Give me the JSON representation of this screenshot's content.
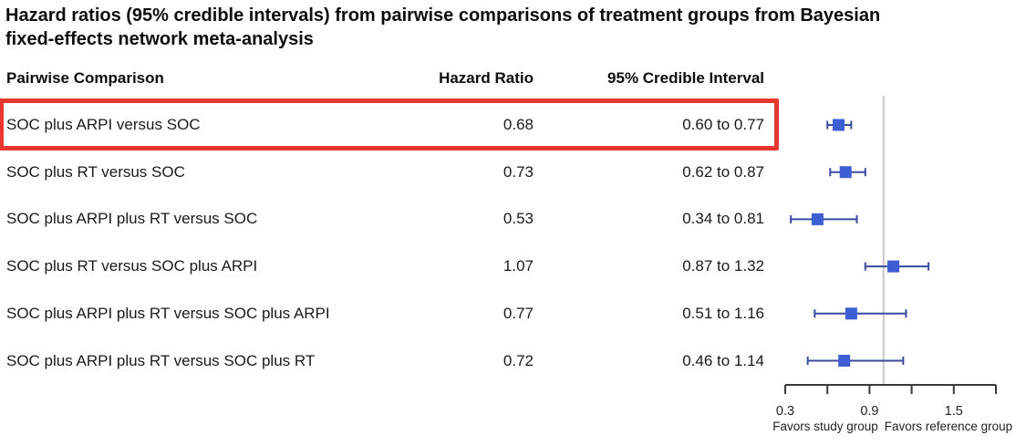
{
  "title": {
    "line1": "Hazard ratios (95% credible intervals) from pairwise comparisons of treatment groups from Bayesian",
    "line2": "fixed-effects network meta-analysis"
  },
  "table": {
    "headers": {
      "comparison": "Pairwise Comparison",
      "hazard_ratio": "Hazard Ratio",
      "interval": "95% Credible Interval"
    },
    "rows": [
      {
        "comparison": "SOC plus ARPI versus SOC",
        "hazard_ratio": "0.68",
        "interval": "0.60 to 0.77",
        "highlighted": true
      },
      {
        "comparison": "SOC plus RT versus SOC",
        "hazard_ratio": "0.73",
        "interval": "0.62 to 0.87",
        "highlighted": false
      },
      {
        "comparison": "SOC plus ARPI plus RT versus SOC",
        "hazard_ratio": "0.53",
        "interval": "0.34 to 0.81",
        "highlighted": false
      },
      {
        "comparison": "SOC plus RT versus SOC plus ARPI",
        "hazard_ratio": "1.07",
        "interval": "0.87 to 1.32",
        "highlighted": false
      },
      {
        "comparison": "SOC plus ARPI plus RT versus SOC plus ARPI",
        "hazard_ratio": "0.77",
        "interval": "0.51 to 1.16",
        "highlighted": false
      },
      {
        "comparison": "SOC plus ARPI plus RT versus SOC plus RT",
        "hazard_ratio": "0.72",
        "interval": "0.46 to 1.14",
        "highlighted": false
      }
    ]
  },
  "highlight": {
    "row_index": 0,
    "color": "#e8372e"
  },
  "chart_data": {
    "type": "scatter",
    "subtype": "forest-plot",
    "title": "Hazard ratios (95% credible intervals) from pairwise comparisons of treatment groups from Bayesian fixed-effects network meta-analysis",
    "categories": [
      "SOC plus ARPI versus SOC",
      "SOC plus RT versus SOC",
      "SOC plus ARPI plus RT versus SOC",
      "SOC plus RT versus SOC plus ARPI",
      "SOC plus ARPI plus RT versus SOC plus ARPI",
      "SOC plus ARPI plus RT versus SOC plus RT"
    ],
    "series": [
      {
        "name": "Hazard ratio",
        "values": [
          0.68,
          0.73,
          0.53,
          1.07,
          0.77,
          0.72
        ]
      },
      {
        "name": "95% CrI lower",
        "values": [
          0.6,
          0.62,
          0.34,
          0.87,
          0.51,
          0.46
        ]
      },
      {
        "name": "95% CrI upper",
        "values": [
          0.77,
          0.87,
          0.81,
          1.32,
          1.16,
          1.14
        ]
      }
    ],
    "xaxis": {
      "scale": "linear",
      "range": [
        0.3,
        1.8
      ],
      "ticks": [
        0.3,
        0.6,
        0.9,
        1.2,
        1.5,
        1.8
      ],
      "labeled_ticks": [
        "0.3",
        "0.9",
        "1.5"
      ],
      "reference_line": 1.0
    },
    "annotations": {
      "favors_left": "Favors study group",
      "favors_right": "Favors reference group"
    },
    "legend": "none",
    "grid": false,
    "colors": {
      "marker": "#3e5fd3",
      "whisker": "#3a4a9e",
      "reference_line": "#c9c9c9",
      "axis": "#3a3a3a",
      "highlight": "#e8372e"
    }
  }
}
